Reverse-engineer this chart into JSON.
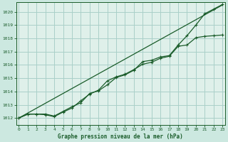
{
  "background_color": "#cce8e0",
  "plot_bg_color": "#dff0ea",
  "grid_color": "#aacfc8",
  "line_color": "#1a5c2a",
  "xlabel": "Graphe pression niveau de la mer (hPa)",
  "ylim": [
    1011.5,
    1020.7
  ],
  "xlim": [
    -0.3,
    23.3
  ],
  "yticks": [
    1012,
    1013,
    1014,
    1015,
    1016,
    1017,
    1018,
    1019,
    1020
  ],
  "xticks": [
    0,
    1,
    2,
    3,
    4,
    5,
    6,
    7,
    8,
    9,
    10,
    11,
    12,
    13,
    14,
    15,
    16,
    17,
    18,
    19,
    20,
    21,
    22,
    23
  ],
  "series_straight": [
    1012.0,
    1012.37,
    1012.74,
    1013.11,
    1013.48,
    1013.85,
    1014.22,
    1014.59,
    1014.96,
    1015.33,
    1015.7,
    1016.07,
    1016.44,
    1016.81,
    1017.18,
    1017.55,
    1017.92,
    1018.29,
    1018.66,
    1019.03,
    1019.4,
    1019.77,
    1020.14,
    1020.51
  ],
  "series_upper": [
    1012.0,
    1012.3,
    1012.3,
    1012.3,
    1012.15,
    1012.5,
    1012.85,
    1013.15,
    1013.85,
    1014.05,
    1014.5,
    1015.05,
    1015.25,
    1015.6,
    1016.25,
    1016.35,
    1016.6,
    1016.7,
    1017.5,
    1018.2,
    1019.0,
    1019.85,
    1020.2,
    1020.55
  ],
  "series_lower": [
    1012.0,
    1012.28,
    1012.3,
    1012.25,
    1012.1,
    1012.45,
    1012.75,
    1013.3,
    1013.8,
    1014.1,
    1014.8,
    1015.1,
    1015.3,
    1015.65,
    1016.05,
    1016.2,
    1016.5,
    1016.65,
    1017.4,
    1017.5,
    1018.05,
    1018.15,
    1018.2,
    1018.25
  ]
}
